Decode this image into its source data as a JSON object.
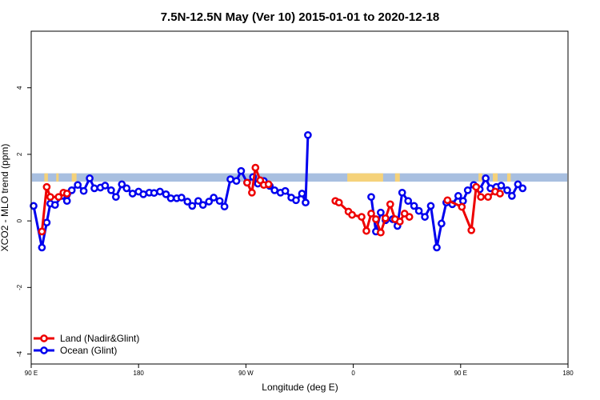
{
  "chart_data": {
    "type": "line",
    "title": "7.5N-12.5N May (Ver 10)   2015-01-01 to 2020-12-18",
    "xlabel": "Longitude (deg E)",
    "ylabel": "XCO2 - MLO trend (ppm)",
    "xlim": [
      90,
      540
    ],
    "ylim": [
      -4.3,
      5.7
    ],
    "x_ticks": [
      {
        "value": 90,
        "label": "90 E"
      },
      {
        "value": 180,
        "label": "180"
      },
      {
        "value": 270,
        "label": "90 W"
      },
      {
        "value": 360,
        "label": "0"
      },
      {
        "value": 450,
        "label": "90 E"
      },
      {
        "value": 540,
        "label": "180"
      }
    ],
    "y_ticks": [
      {
        "value": -4,
        "label": "-4"
      },
      {
        "value": -2,
        "label": "-2"
      },
      {
        "value": 0,
        "label": "0"
      },
      {
        "value": 2,
        "label": "2"
      },
      {
        "value": 4,
        "label": "4"
      }
    ],
    "band": {
      "y_min": 1.18,
      "y_max": 1.43,
      "color": "#a8bfe0"
    },
    "land_segments": [
      {
        "x0": 101,
        "x1": 104
      },
      {
        "x0": 111,
        "x1": 113
      },
      {
        "x0": 124,
        "x1": 128
      },
      {
        "x0": 355,
        "x1": 385
      },
      {
        "x0": 395,
        "x1": 399
      },
      {
        "x0": 465,
        "x1": 468
      },
      {
        "x0": 477,
        "x1": 481
      },
      {
        "x0": 489,
        "x1": 492
      }
    ],
    "land_color": "#f5d27a",
    "legend_position": "bottom-left",
    "series": [
      {
        "name": "Land (Nadir&Glint)",
        "color": "#ee0000",
        "segments": [
          [
            [
              99,
              -0.32
            ],
            [
              103,
              1.02
            ],
            [
              106,
              0.72
            ],
            [
              113,
              0.72
            ],
            [
              117,
              0.85
            ],
            [
              120,
              0.82
            ]
          ],
          [
            [
              271,
              1.15
            ],
            [
              275,
              0.85
            ],
            [
              278,
              1.6
            ],
            [
              282,
              1.22
            ],
            [
              285,
              1.08
            ],
            [
              289,
              1.1
            ]
          ],
          [
            [
              345,
              0.6
            ],
            [
              348,
              0.55
            ],
            [
              356,
              0.28
            ],
            [
              359,
              0.18
            ],
            [
              367,
              0.12
            ],
            [
              371,
              -0.3
            ],
            [
              375,
              0.22
            ],
            [
              379,
              0.05
            ],
            [
              383,
              -0.35
            ],
            [
              387,
              0.08
            ],
            [
              391,
              0.5
            ],
            [
              395,
              0.05
            ],
            [
              399,
              -0.02
            ],
            [
              403,
              0.22
            ],
            [
              407,
              0.12
            ]
          ],
          [
            [
              439,
              0.62
            ],
            [
              451,
              0.42
            ],
            [
              459,
              -0.28
            ],
            [
              463,
              1.02
            ],
            [
              467,
              0.72
            ],
            [
              473,
              0.72
            ],
            [
              479,
              0.88
            ],
            [
              483,
              0.82
            ]
          ]
        ]
      },
      {
        "name": "Ocean (Glint)",
        "color": "#0000ee",
        "segments": [
          [
            [
              92,
              0.45
            ],
            [
              99,
              -0.8
            ],
            [
              103,
              -0.05
            ],
            [
              106,
              0.52
            ],
            [
              110,
              0.48
            ],
            [
              116,
              0.75
            ],
            [
              120,
              0.6
            ],
            [
              124,
              0.92
            ],
            [
              129,
              1.08
            ],
            [
              134,
              0.9
            ],
            [
              139,
              1.28
            ],
            [
              143,
              0.98
            ],
            [
              148,
              1.0
            ],
            [
              152,
              1.06
            ],
            [
              157,
              0.92
            ],
            [
              161,
              0.72
            ],
            [
              166,
              1.1
            ],
            [
              170,
              0.98
            ],
            [
              175,
              0.82
            ],
            [
              180,
              0.88
            ],
            [
              184,
              0.8
            ],
            [
              189,
              0.85
            ],
            [
              193,
              0.84
            ],
            [
              198,
              0.88
            ],
            [
              203,
              0.8
            ],
            [
              207,
              0.68
            ],
            [
              212,
              0.68
            ],
            [
              216,
              0.7
            ],
            [
              221,
              0.58
            ],
            [
              225,
              0.45
            ],
            [
              230,
              0.6
            ],
            [
              234,
              0.48
            ],
            [
              239,
              0.58
            ],
            [
              243,
              0.7
            ],
            [
              248,
              0.6
            ],
            [
              252,
              0.43
            ],
            [
              257,
              1.25
            ],
            [
              262,
              1.2
            ],
            [
              266,
              1.5
            ],
            [
              271,
              1.15
            ],
            [
              276,
              1.32
            ],
            [
              280,
              1.12
            ],
            [
              285,
              1.2
            ],
            [
              290,
              1.05
            ],
            [
              294,
              0.92
            ],
            [
              299,
              0.85
            ],
            [
              303,
              0.9
            ],
            [
              308,
              0.7
            ],
            [
              312,
              0.62
            ],
            [
              317,
              0.82
            ],
            [
              320,
              0.55
            ],
            [
              322,
              2.58
            ]
          ],
          [
            [
              375,
              0.72
            ],
            [
              379,
              -0.32
            ],
            [
              383,
              0.25
            ],
            [
              387,
              0.02
            ],
            [
              393,
              0.05
            ],
            [
              397,
              -0.15
            ],
            [
              401,
              0.85
            ],
            [
              406,
              0.6
            ],
            [
              411,
              0.45
            ],
            [
              415,
              0.3
            ],
            [
              420,
              0.12
            ],
            [
              425,
              0.45
            ],
            [
              430,
              -0.8
            ],
            [
              434,
              -0.08
            ],
            [
              438,
              0.55
            ],
            [
              443,
              0.5
            ],
            [
              448,
              0.75
            ],
            [
              452,
              0.6
            ],
            [
              456,
              0.92
            ],
            [
              461,
              1.08
            ],
            [
              466,
              0.95
            ],
            [
              471,
              1.28
            ],
            [
              475,
              0.98
            ],
            [
              480,
              1.02
            ],
            [
              484,
              1.06
            ],
            [
              489,
              0.92
            ],
            [
              493,
              0.75
            ],
            [
              498,
              1.1
            ],
            [
              502,
              0.98
            ]
          ]
        ]
      }
    ]
  }
}
